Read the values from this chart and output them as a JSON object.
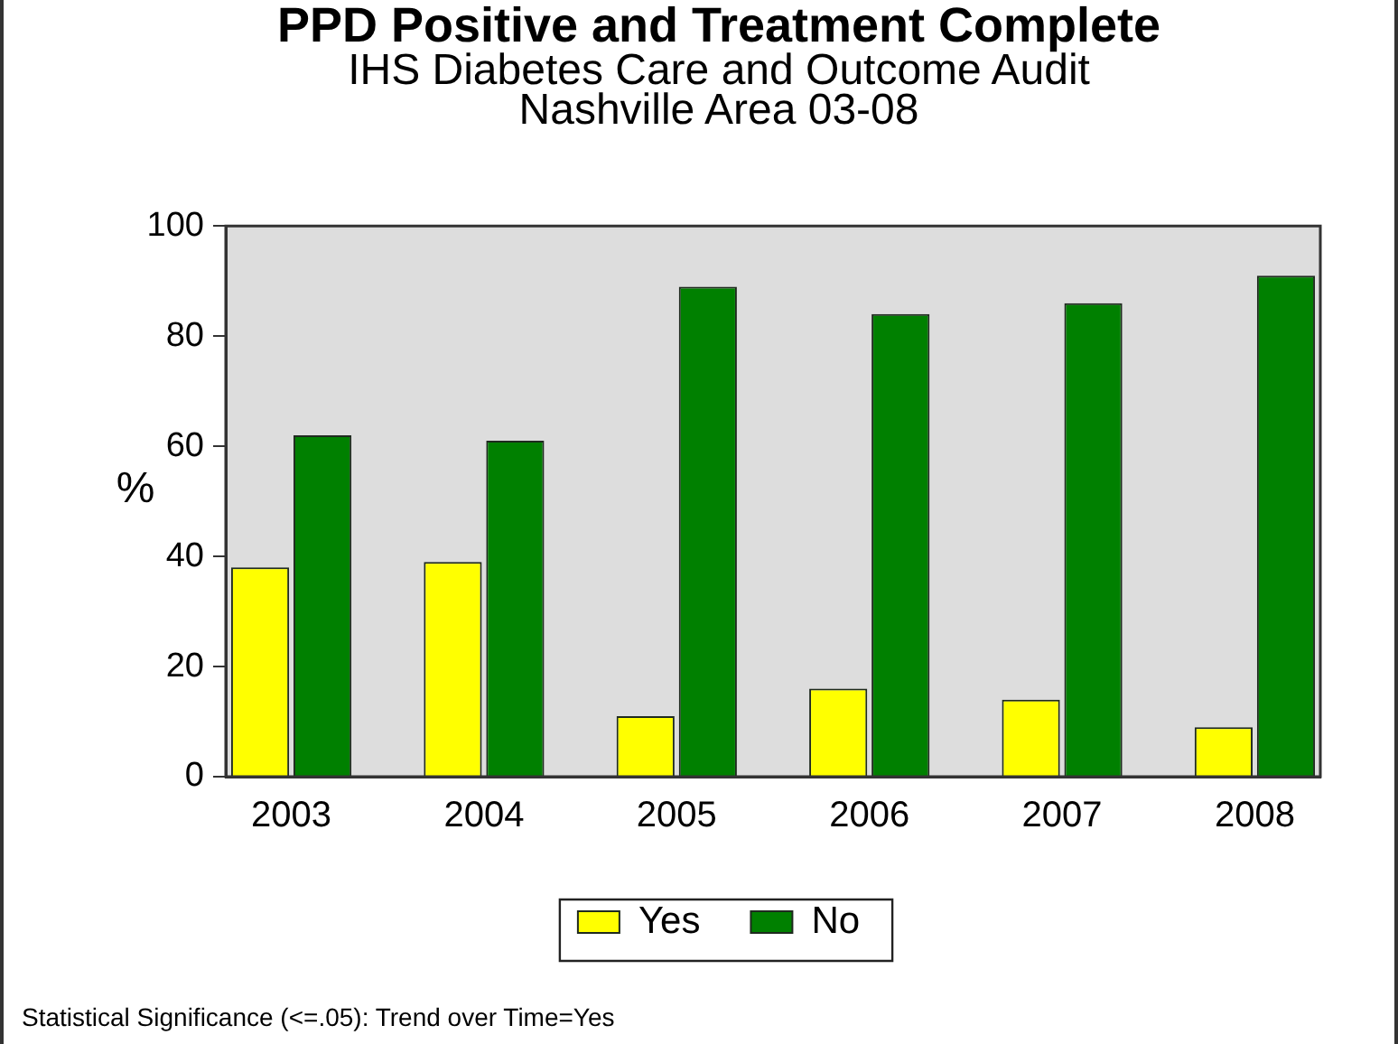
{
  "chart_data": {
    "type": "bar",
    "title": "PPD Positive and Treatment Complete",
    "subtitle": "IHS Diabetes Care and Outcome Audit\nNashville Area 03-08",
    "ylabel": "%",
    "categories": [
      "2003",
      "2004",
      "2005",
      "2006",
      "2007",
      "2008"
    ],
    "series": [
      {
        "name": "Yes",
        "color": "#ffff00",
        "values": [
          38,
          39,
          11,
          16,
          14,
          9
        ]
      },
      {
        "name": "No",
        "color": "#008000",
        "values": [
          62,
          61,
          89,
          84,
          86,
          91
        ]
      }
    ],
    "ylim": [
      0,
      100
    ],
    "yticks": [
      0,
      20,
      40,
      60,
      80,
      100
    ],
    "grid": false,
    "legend": "bottom",
    "annotations": [
      "Statistical Significance (<=.05): Trend over Time=Yes"
    ]
  }
}
